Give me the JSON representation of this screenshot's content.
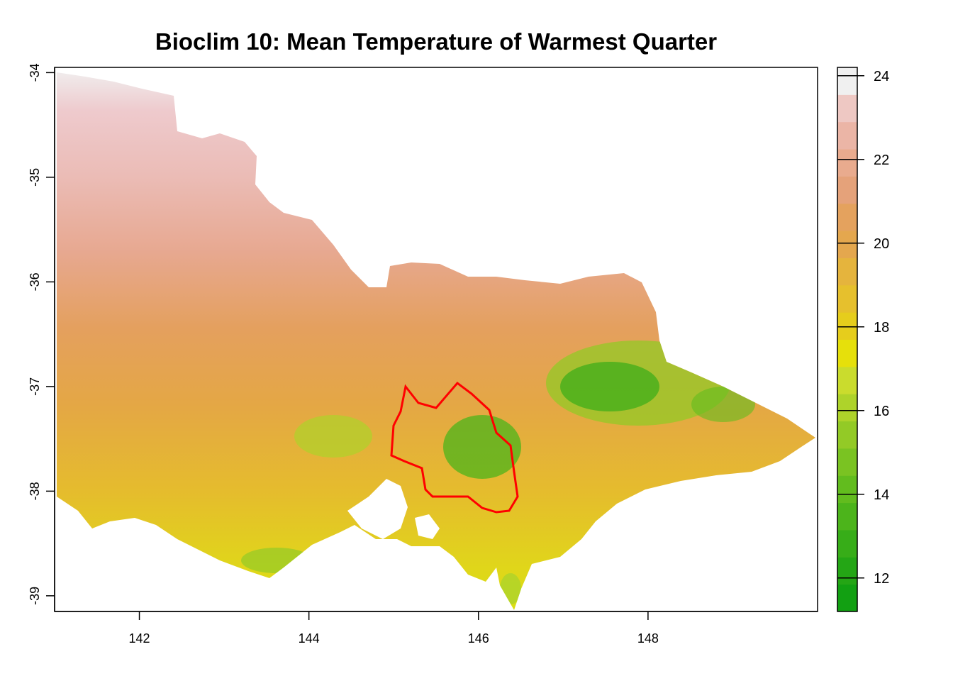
{
  "title": "Bioclim 10: Mean Temperature of Warmest Quarter",
  "map": {
    "x_ticks": [
      "142",
      "144",
      "146",
      "148"
    ],
    "y_ticks": [
      "-34",
      "-35",
      "-36",
      "-37",
      "-38",
      "-39"
    ],
    "xlim": [
      141,
      150
    ],
    "ylim": [
      -39.15,
      -33.95
    ],
    "overlay_outline_color": "#ff0000"
  },
  "legend": {
    "ticks": [
      "24",
      "22",
      "20",
      "18",
      "16",
      "14",
      "12"
    ],
    "range": [
      11.2,
      24.2
    ],
    "colors_low_to_high": [
      "#12a012",
      "#24a615",
      "#37ad18",
      "#4cb41b",
      "#62bc1e",
      "#7ac322",
      "#93ca26",
      "#aed32a",
      "#cadc2d",
      "#e6e00b",
      "#e6cd1c",
      "#e6c02d",
      "#e5b43d",
      "#e4a74e",
      "#e4a25e",
      "#e5a27a",
      "#e9ab8e",
      "#ebb5a6",
      "#eec8c3",
      "#f0f0f0"
    ]
  }
}
